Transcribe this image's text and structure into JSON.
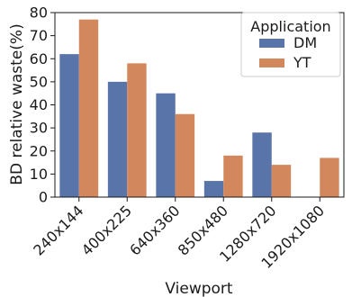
{
  "chart_data": {
    "type": "bar",
    "title": "",
    "xlabel": "Viewport",
    "ylabel": "BD relative waste(%)",
    "categories": [
      "240x144",
      "400x225",
      "640x360",
      "850x480",
      "1280x720",
      "1920x1080"
    ],
    "series": [
      {
        "name": "DM",
        "color": "#5874a8",
        "values": [
          62,
          50,
          45,
          7,
          28,
          0
        ]
      },
      {
        "name": "YT",
        "color": "#d3875c",
        "values": [
          77,
          58,
          36,
          18,
          14,
          17
        ]
      }
    ],
    "ylim": [
      0,
      80
    ],
    "yticks": [
      0,
      10,
      20,
      30,
      40,
      50,
      60,
      70,
      80
    ],
    "legend": {
      "title": "Application",
      "placement": "top-right"
    },
    "grid": false
  }
}
